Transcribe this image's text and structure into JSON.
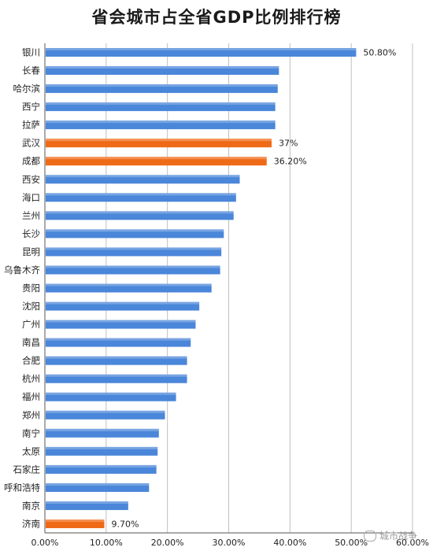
{
  "chart_data": {
    "type": "bar",
    "orientation": "horizontal",
    "title": "省会城市占全省GDP比例排行榜",
    "xlabel": "",
    "ylabel": "",
    "xlim": [
      0,
      60
    ],
    "x_ticks": [
      "0.00%",
      "10.00%",
      "20.00%",
      "30.00%",
      "40.00%",
      "50.00%",
      "60.00%"
    ],
    "grid": "vertical",
    "legend": "none",
    "categories": [
      "银川",
      "长春",
      "哈尔滨",
      "西宁",
      "拉萨",
      "武汉",
      "成都",
      "西安",
      "海口",
      "兰州",
      "长沙",
      "昆明",
      "乌鲁木齐",
      "贵阳",
      "沈阳",
      "广州",
      "南昌",
      "合肥",
      "杭州",
      "福州",
      "郑州",
      "南宁",
      "太原",
      "石家庄",
      "呼和浩特",
      "南京",
      "济南"
    ],
    "values": [
      50.8,
      38.2,
      38.0,
      37.6,
      37.6,
      37.0,
      36.2,
      31.8,
      31.2,
      30.8,
      29.2,
      28.8,
      28.6,
      27.2,
      25.2,
      24.6,
      23.8,
      23.2,
      23.2,
      21.4,
      19.6,
      18.6,
      18.4,
      18.2,
      17.0,
      13.6,
      9.7
    ],
    "highlight": [
      "武汉",
      "成都",
      "济南"
    ],
    "data_labels": {
      "银川": "50.80%",
      "武汉": "37%",
      "成都": "36.20%",
      "济南": "9.70%"
    },
    "colors": {
      "default": "#4a86d9",
      "highlight": "#ef6a17",
      "grid": "#bfbfbf",
      "axis": "#555555"
    }
  },
  "watermark": {
    "text": "城市战争"
  }
}
